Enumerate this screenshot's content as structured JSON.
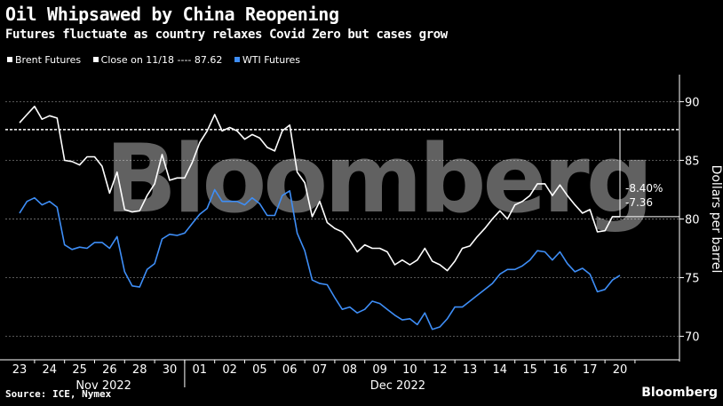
{
  "chart_data": {
    "type": "line",
    "title": "Oil Whipsawed by China Reopening",
    "subtitle": "Futures fluctuate as country relaxes Covid Zero but cases grow",
    "ylabel": "Dollars per barrel",
    "ylim": [
      68,
      92
    ],
    "yticks": [
      "70",
      "75",
      "80",
      "85",
      "90"
    ],
    "grid": true,
    "legend_position": "top-left",
    "watermark": "Bloomberg",
    "x_labels": [
      "23",
      "24",
      "25",
      "26",
      "28",
      "30",
      "01",
      "02",
      "05",
      "06",
      "07",
      "08",
      "09",
      "10",
      "12",
      "13",
      "14",
      "15",
      "16",
      "17",
      "20"
    ],
    "month_labels": [
      "Nov 2022",
      "Dec 2022"
    ],
    "reference_line": {
      "label": "Close on 11/18",
      "value": 87.62,
      "value_text": "87.62"
    },
    "annotations": {
      "brent_change": "-8.40%",
      "wti_change": "-7.36"
    },
    "series": [
      {
        "name": "Brent Futures",
        "color": "#ffffff",
        "points": [
          [
            0,
            88.2
          ],
          [
            0.25,
            88.9
          ],
          [
            0.5,
            89.6
          ],
          [
            0.75,
            88.5
          ],
          [
            1,
            88.8
          ],
          [
            1.25,
            88.6
          ],
          [
            1.5,
            85
          ],
          [
            1.75,
            84.9
          ],
          [
            2,
            84.6
          ],
          [
            2.25,
            85.3
          ],
          [
            2.5,
            85.3
          ],
          [
            2.75,
            84.5
          ],
          [
            3,
            82.2
          ],
          [
            3.25,
            84
          ],
          [
            3.5,
            80.8
          ],
          [
            3.75,
            80.6
          ],
          [
            4,
            80.7
          ],
          [
            4.25,
            82
          ],
          [
            4.5,
            83
          ],
          [
            4.75,
            85.5
          ],
          [
            5,
            83.3
          ],
          [
            5.25,
            83.5
          ],
          [
            5.5,
            83.5
          ],
          [
            5.75,
            84.8
          ],
          [
            6,
            86.5
          ],
          [
            6.25,
            87.5
          ],
          [
            6.5,
            88.9
          ],
          [
            6.75,
            87.5
          ],
          [
            7,
            87.8
          ],
          [
            7.25,
            87.5
          ],
          [
            7.5,
            86.8
          ],
          [
            7.75,
            87.2
          ],
          [
            8,
            86.9
          ],
          [
            8.25,
            86.1
          ],
          [
            8.5,
            85.8
          ],
          [
            8.75,
            87.5
          ],
          [
            9,
            88
          ],
          [
            9.25,
            84
          ],
          [
            9.5,
            83.1
          ],
          [
            9.75,
            80.2
          ],
          [
            10,
            81.5
          ],
          [
            10.25,
            79.7
          ],
          [
            10.5,
            79.2
          ],
          [
            10.75,
            78.9
          ],
          [
            11,
            78.2
          ],
          [
            11.25,
            77.2
          ],
          [
            11.5,
            77.8
          ],
          [
            11.75,
            77.5
          ],
          [
            12,
            77.5
          ],
          [
            12.25,
            77.2
          ],
          [
            12.5,
            76.1
          ],
          [
            12.75,
            76.5
          ],
          [
            13,
            76.1
          ],
          [
            13.25,
            76.5
          ],
          [
            13.5,
            77.5
          ],
          [
            13.75,
            76.4
          ],
          [
            14,
            76.1
          ],
          [
            14.25,
            75.6
          ],
          [
            14.5,
            76.4
          ],
          [
            14.75,
            77.5
          ],
          [
            15,
            77.7
          ],
          [
            15.25,
            78.5
          ],
          [
            15.5,
            79.2
          ],
          [
            15.75,
            80
          ],
          [
            16,
            80.7
          ],
          [
            16.25,
            80
          ],
          [
            16.5,
            81.2
          ],
          [
            16.75,
            81.5
          ],
          [
            17,
            82
          ],
          [
            17.25,
            83
          ],
          [
            17.5,
            83
          ],
          [
            17.75,
            82
          ],
          [
            18,
            82.9
          ],
          [
            18.25,
            82
          ],
          [
            18.5,
            81.2
          ],
          [
            18.75,
            80.5
          ],
          [
            19,
            80.8
          ],
          [
            19.25,
            78.9
          ],
          [
            19.5,
            79
          ],
          [
            19.75,
            80.2
          ],
          [
            20,
            80.2
          ]
        ]
      },
      {
        "name": "WTI Futures",
        "color": "#3e8ef7",
        "points": [
          [
            0,
            80.5
          ],
          [
            0.25,
            81.5
          ],
          [
            0.5,
            81.8
          ],
          [
            0.75,
            81.2
          ],
          [
            1,
            81.5
          ],
          [
            1.25,
            81
          ],
          [
            1.5,
            77.8
          ],
          [
            1.75,
            77.4
          ],
          [
            2,
            77.6
          ],
          [
            2.25,
            77.5
          ],
          [
            2.5,
            78
          ],
          [
            2.75,
            78
          ],
          [
            3,
            77.5
          ],
          [
            3.25,
            78.5
          ],
          [
            3.5,
            75.5
          ],
          [
            3.75,
            74.3
          ],
          [
            4,
            74.2
          ],
          [
            4.25,
            75.7
          ],
          [
            4.5,
            76.2
          ],
          [
            4.75,
            78.3
          ],
          [
            5,
            78.7
          ],
          [
            5.25,
            78.6
          ],
          [
            5.5,
            78.8
          ],
          [
            5.75,
            79.6
          ],
          [
            6,
            80.4
          ],
          [
            6.25,
            80.9
          ],
          [
            6.5,
            82.5
          ],
          [
            6.75,
            81.5
          ],
          [
            7,
            81.5
          ],
          [
            7.25,
            81.5
          ],
          [
            7.5,
            81.2
          ],
          [
            7.75,
            81.8
          ],
          [
            8,
            81.3
          ],
          [
            8.25,
            80.3
          ],
          [
            8.5,
            80.3
          ],
          [
            8.75,
            82
          ],
          [
            9,
            82.4
          ],
          [
            9.25,
            78.8
          ],
          [
            9.5,
            77.3
          ],
          [
            9.75,
            74.8
          ],
          [
            10,
            74.5
          ],
          [
            10.25,
            74.4
          ],
          [
            10.5,
            73.3
          ],
          [
            10.75,
            72.3
          ],
          [
            11,
            72.5
          ],
          [
            11.25,
            72
          ],
          [
            11.5,
            72.3
          ],
          [
            11.75,
            73
          ],
          [
            12,
            72.8
          ],
          [
            12.25,
            72.3
          ],
          [
            12.5,
            71.8
          ],
          [
            12.75,
            71.4
          ],
          [
            13,
            71.5
          ],
          [
            13.25,
            71
          ],
          [
            13.5,
            72
          ],
          [
            13.75,
            70.6
          ],
          [
            14,
            70.8
          ],
          [
            14.25,
            71.5
          ],
          [
            14.5,
            72.5
          ],
          [
            14.75,
            72.5
          ],
          [
            15,
            73
          ],
          [
            15.25,
            73.5
          ],
          [
            15.5,
            74
          ],
          [
            15.75,
            74.5
          ],
          [
            16,
            75.3
          ],
          [
            16.25,
            75.7
          ],
          [
            16.5,
            75.7
          ],
          [
            16.75,
            76
          ],
          [
            17,
            76.5
          ],
          [
            17.25,
            77.3
          ],
          [
            17.5,
            77.2
          ],
          [
            17.75,
            76.5
          ],
          [
            18,
            77.2
          ],
          [
            18.25,
            76.2
          ],
          [
            18.5,
            75.5
          ],
          [
            18.75,
            75.8
          ],
          [
            19,
            75.3
          ],
          [
            19.25,
            73.8
          ],
          [
            19.5,
            74
          ],
          [
            19.75,
            74.8
          ],
          [
            20,
            75.2
          ]
        ]
      }
    ]
  },
  "footer": {
    "source": "Source: ICE, Nymex",
    "brand": "Bloomberg"
  }
}
